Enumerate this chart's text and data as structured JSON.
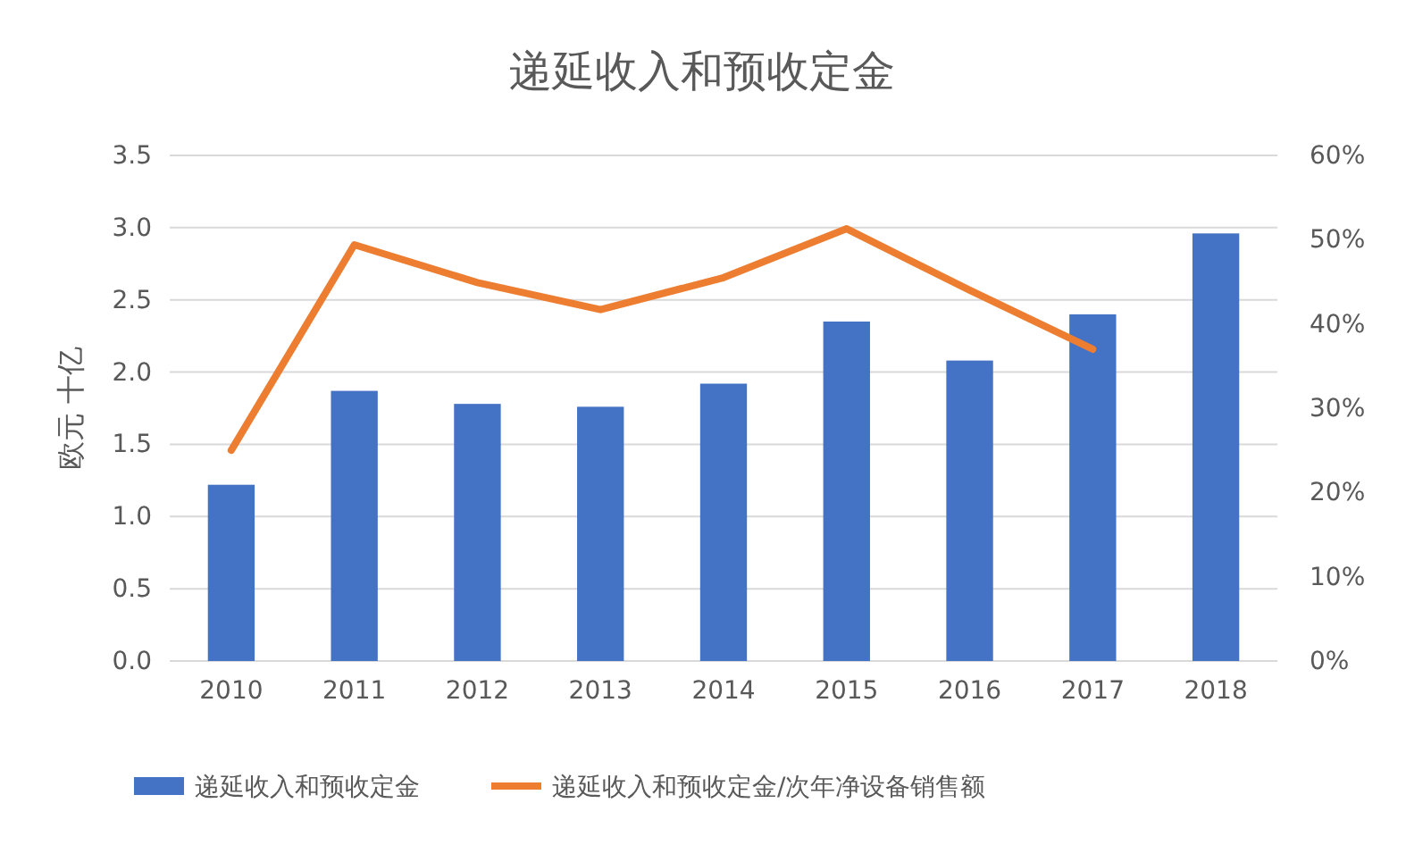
{
  "chart_data": {
    "type": "bar",
    "title": "递延收入和预收定金",
    "ylabel": "欧元 十亿",
    "categories": [
      "2010",
      "2011",
      "2012",
      "2013",
      "2014",
      "2015",
      "2016",
      "2017",
      "2018"
    ],
    "series": [
      {
        "name": "递延收入和预收定金",
        "color": "#4472c4",
        "values": [
          1.22,
          1.87,
          1.78,
          1.76,
          1.92,
          2.35,
          2.08,
          2.4,
          2.96
        ]
      },
      {
        "name": "递延收入和预收定金/次年净设备销售额",
        "type": "line",
        "axis": "y2",
        "color": "#ed7d31",
        "values": [
          25,
          49.4,
          44.9,
          41.7,
          45.5,
          51.3,
          44,
          37,
          null
        ]
      }
    ],
    "ylim": [
      0,
      3.5
    ],
    "yticks": [
      {
        "value": 0,
        "label": "0.0"
      },
      {
        "value": 0.5,
        "label": "0.5"
      },
      {
        "value": 1,
        "label": "1.0"
      },
      {
        "value": 1.5,
        "label": "1.5"
      },
      {
        "value": 2,
        "label": "2.0"
      },
      {
        "value": 2.5,
        "label": "2.5"
      },
      {
        "value": 3,
        "label": "3.0"
      },
      {
        "value": 3.5,
        "label": "3.5"
      }
    ],
    "y2lim": [
      0,
      60
    ],
    "y2ticks": [
      {
        "value": 0,
        "label": "0%"
      },
      {
        "value": 10,
        "label": "10%"
      },
      {
        "value": 20,
        "label": "20%"
      },
      {
        "value": 30,
        "label": "30%"
      },
      {
        "value": 40,
        "label": "40%"
      },
      {
        "value": 50,
        "label": "50%"
      },
      {
        "value": 60,
        "label": "60%"
      }
    ],
    "grid": "y",
    "legend": "bottom",
    "marker": "none",
    "line_style": "solid"
  }
}
